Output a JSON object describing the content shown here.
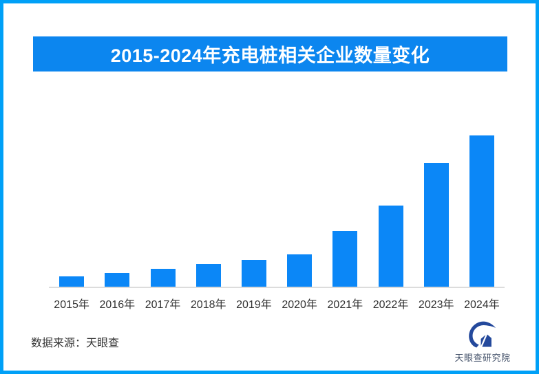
{
  "page": {
    "border_color": "#00a0f7",
    "background": "#ffffff"
  },
  "header": {
    "title": "2015-2024年充电桩相关企业数量变化",
    "banner_color": "#0c86ef",
    "title_color": "#ffffff"
  },
  "chart_data": {
    "type": "bar",
    "title": "2015-2024年充电桩相关企业数量变化",
    "categories": [
      "2015年",
      "2016年",
      "2017年",
      "2018年",
      "2019年",
      "2020年",
      "2021年",
      "2022年",
      "2023年",
      "2024年"
    ],
    "values": [
      15,
      20,
      26,
      33,
      39,
      47,
      81,
      118,
      180,
      220
    ],
    "value_scale": "relative bar heights (no numeric axis or data labels shown in chart)",
    "xlabel": "",
    "ylabel": "",
    "ylim": [
      0,
      240
    ],
    "grid": false,
    "legend": false,
    "bar_color": "#0b87f7",
    "axis_line_color": "#dcdcdc",
    "tick_label_color": "#333333"
  },
  "footer": {
    "source_text": "数据来源：天眼查",
    "logo_text": "天眼查研究院",
    "logo_color": "#24499c",
    "logo_text_color": "#44526a"
  }
}
